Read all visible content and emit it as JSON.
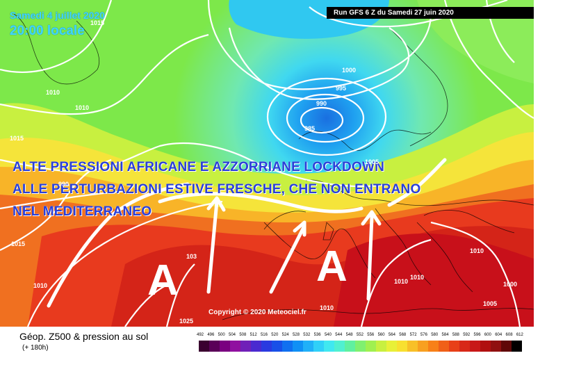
{
  "map": {
    "date_line": "Samedi 4 juillet 2020",
    "time_line": "20:00 locale",
    "run_info": "Run GFS 6 Z du Samedi 27 juin 2020",
    "copyright": "Copyright © 2020 Meteociel.fr",
    "caption_lines": [
      "ALTE PRESSIONI AFRICANE E AZZORRIANE LOCKDOWN",
      "ALLE PERTURBAZIONI ESTIVE FRESCHE, CHE NON ENTRANO",
      "NEL MEDITERRANEO"
    ],
    "high_markers": [
      "A",
      "A"
    ],
    "isobar_labels": [
      "1015",
      "1010",
      "1010",
      "1015",
      "1000",
      "995",
      "990",
      "985",
      "1005",
      "990",
      "1015",
      "1010",
      "1025",
      "103",
      "1010",
      "1010",
      "1010",
      "1010",
      "1005",
      "1000"
    ],
    "colors": {
      "deep_low": "#1a8fe0",
      "cool": "#40d8f0",
      "mid": "#7de84a",
      "warm": "#f5e43a",
      "hot": "#e83a1e",
      "very_hot": "#c8101a",
      "caption": "#2a3fd8"
    }
  },
  "legend": {
    "title": "Géop. Z500 & pression au sol",
    "subtitle": "(+ 180h)",
    "scale_values": [
      "492",
      "496",
      "500",
      "504",
      "508",
      "512",
      "516",
      "520",
      "524",
      "528",
      "532",
      "536",
      "540",
      "544",
      "548",
      "552",
      "556",
      "560",
      "564",
      "568",
      "572",
      "576",
      "580",
      "584",
      "588",
      "592",
      "596",
      "600",
      "604",
      "608",
      "612"
    ],
    "scale_colors": [
      "#3a0030",
      "#5a0058",
      "#7a0080",
      "#9010a0",
      "#7020b8",
      "#4a2ad0",
      "#2a3ae0",
      "#1850e8",
      "#1070f0",
      "#1090f5",
      "#20b0f8",
      "#30d0f8",
      "#40e8f0",
      "#50f0d0",
      "#60f0a0",
      "#80f070",
      "#a0f050",
      "#c8f040",
      "#e8f038",
      "#f8e030",
      "#f8c028",
      "#f8a020",
      "#f88018",
      "#f06018",
      "#e84018",
      "#d82818",
      "#c81818",
      "#b01010",
      "#901010",
      "#600808",
      "#000000"
    ]
  }
}
